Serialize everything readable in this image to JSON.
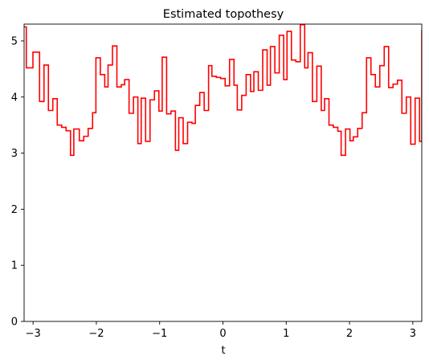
{
  "chart_data": {
    "type": "line",
    "drawstyle": "steps",
    "title": "Estimated topothesy",
    "xlabel": "t",
    "ylabel": "",
    "xlim": [
      -3.1416,
      3.1416
    ],
    "ylim": [
      0,
      5.3
    ],
    "xticks": [
      -3,
      -2,
      -1,
      0,
      1,
      2,
      3
    ],
    "xtick_labels": [
      "−3",
      "−2",
      "−1",
      "0",
      "1",
      "2",
      "3"
    ],
    "yticks": [
      0,
      1,
      2,
      3,
      4,
      5
    ],
    "ytick_labels": [
      "0",
      "1",
      "2",
      "3",
      "4",
      "5"
    ],
    "grid": false,
    "legend": "none",
    "series": [
      {
        "color": "#ff0000",
        "x": [
          -3.1416,
          -3.1067,
          -3.002,
          -2.8973,
          -2.8274,
          -2.7576,
          -2.6878,
          -2.618,
          -2.5482,
          -2.4784,
          -2.4086,
          -2.3562,
          -2.2689,
          -2.1991,
          -2.1293,
          -2.0595,
          -2.0071,
          -1.9373,
          -1.8675,
          -1.8151,
          -1.7453,
          -1.6755,
          -1.6057,
          -1.5533,
          -1.4835,
          -1.4137,
          -1.3439,
          -1.2915,
          -1.2217,
          -1.1519,
          -1.0821,
          -1.0123,
          -0.9599,
          -0.8901,
          -0.8203,
          -0.7505,
          -0.6981,
          -0.6283,
          -0.5585,
          -0.4887,
          -0.4363,
          -0.3665,
          -0.2967,
          -0.2269,
          -0.1745,
          -0.1047,
          -0.0349,
          0.0349,
          0.1047,
          0.1745,
          0.2269,
          0.2967,
          0.3665,
          0.4363,
          0.4887,
          0.5585,
          0.6283,
          0.6981,
          0.7505,
          0.8203,
          0.8901,
          0.9599,
          1.0123,
          1.0821,
          1.1519,
          1.2217,
          1.2915,
          1.3439,
          1.4137,
          1.4835,
          1.5533,
          1.6057,
          1.6755,
          1.7453,
          1.8151,
          1.8675,
          1.9373,
          2.0071,
          2.0595,
          2.1293,
          2.1991,
          2.2689,
          2.3387,
          2.4086,
          2.4784,
          2.5482,
          2.618,
          2.6878,
          2.7576,
          2.8274,
          2.8973,
          2.9671,
          3.0369,
          3.1067
        ],
        "y": [
          5.25,
          4.52,
          4.8,
          3.92,
          4.57,
          3.76,
          3.97,
          3.5,
          3.46,
          3.4,
          2.96,
          3.43,
          3.22,
          3.3,
          3.44,
          3.72,
          4.7,
          4.4,
          4.18,
          4.57,
          4.91,
          4.18,
          4.22,
          4.31,
          3.71,
          4.0,
          3.17,
          3.98,
          3.21,
          3.95,
          4.11,
          3.75,
          4.71,
          3.7,
          3.75,
          3.05,
          3.63,
          3.17,
          3.55,
          3.53,
          3.85,
          4.08,
          3.76,
          4.56,
          4.37,
          4.35,
          4.33,
          4.2,
          4.67,
          4.21,
          3.77,
          4.03,
          4.4,
          4.1,
          4.45,
          4.12,
          4.84,
          4.21,
          4.9,
          4.43,
          5.1,
          4.31,
          5.17,
          4.66,
          4.63,
          5.29,
          4.52,
          4.79,
          3.92,
          4.55,
          3.76,
          3.97,
          3.5,
          3.46,
          3.39,
          2.96,
          3.43,
          3.22,
          3.29,
          3.44,
          3.72,
          4.7,
          4.4,
          4.18,
          4.56,
          4.9,
          4.17,
          4.23,
          4.3,
          3.71,
          4.0,
          3.16,
          3.98,
          3.21
        ],
        "x_end": 3.1416,
        "y_end": 5.2
      }
    ]
  }
}
